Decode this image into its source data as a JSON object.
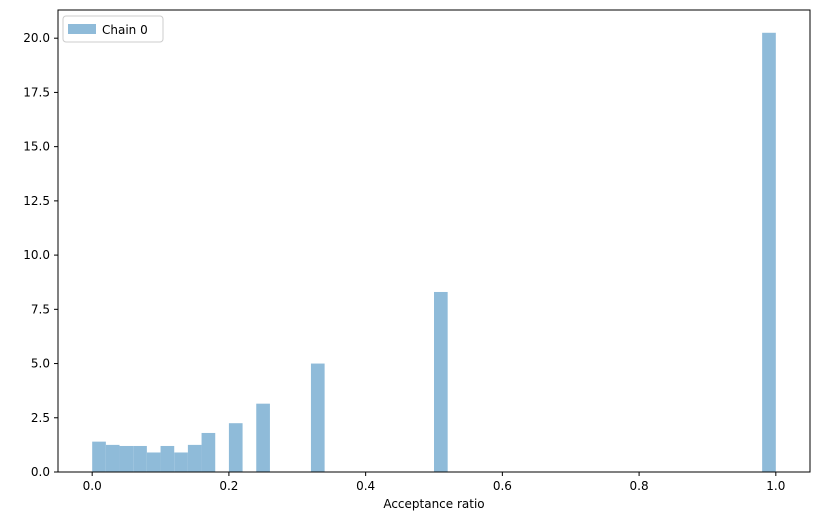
{
  "chart_data": {
    "type": "bar",
    "xlabel": "Acceptance ratio",
    "ylabel": "",
    "xlim": [
      -0.05,
      1.05
    ],
    "ylim": [
      0,
      21.3
    ],
    "grid": false,
    "legend": {
      "placement": "top-left",
      "entries": [
        "Chain 0"
      ]
    },
    "series": [
      {
        "name": "Chain 0",
        "color": "#8fbbd9",
        "bin_width": 0.02,
        "bins": [
          {
            "x0": 0.0,
            "value": 1.4
          },
          {
            "x0": 0.02,
            "value": 1.25
          },
          {
            "x0": 0.04,
            "value": 1.2
          },
          {
            "x0": 0.06,
            "value": 1.2
          },
          {
            "x0": 0.08,
            "value": 0.9
          },
          {
            "x0": 0.1,
            "value": 1.2
          },
          {
            "x0": 0.12,
            "value": 0.9
          },
          {
            "x0": 0.14,
            "value": 1.25
          },
          {
            "x0": 0.16,
            "value": 1.8
          },
          {
            "x0": 0.2,
            "value": 2.25
          },
          {
            "x0": 0.24,
            "value": 3.15
          },
          {
            "x0": 0.32,
            "value": 5.0
          },
          {
            "x0": 0.5,
            "value": 8.3
          },
          {
            "x0": 0.98,
            "value": 20.25
          }
        ]
      }
    ],
    "xticks": [
      {
        "value": 0.0,
        "label": "0.0"
      },
      {
        "value": 0.2,
        "label": "0.2"
      },
      {
        "value": 0.4,
        "label": "0.4"
      },
      {
        "value": 0.6,
        "label": "0.6"
      },
      {
        "value": 0.8,
        "label": "0.8"
      },
      {
        "value": 1.0,
        "label": "1.0"
      }
    ],
    "yticks": [
      {
        "value": 0.0,
        "label": "0.0"
      },
      {
        "value": 2.5,
        "label": "2.5"
      },
      {
        "value": 5.0,
        "label": "5.0"
      },
      {
        "value": 7.5,
        "label": "7.5"
      },
      {
        "value": 10.0,
        "label": "10.0"
      },
      {
        "value": 12.5,
        "label": "12.5"
      },
      {
        "value": 15.0,
        "label": "15.0"
      },
      {
        "value": 17.5,
        "label": "17.5"
      },
      {
        "value": 20.0,
        "label": "20.0"
      }
    ]
  }
}
